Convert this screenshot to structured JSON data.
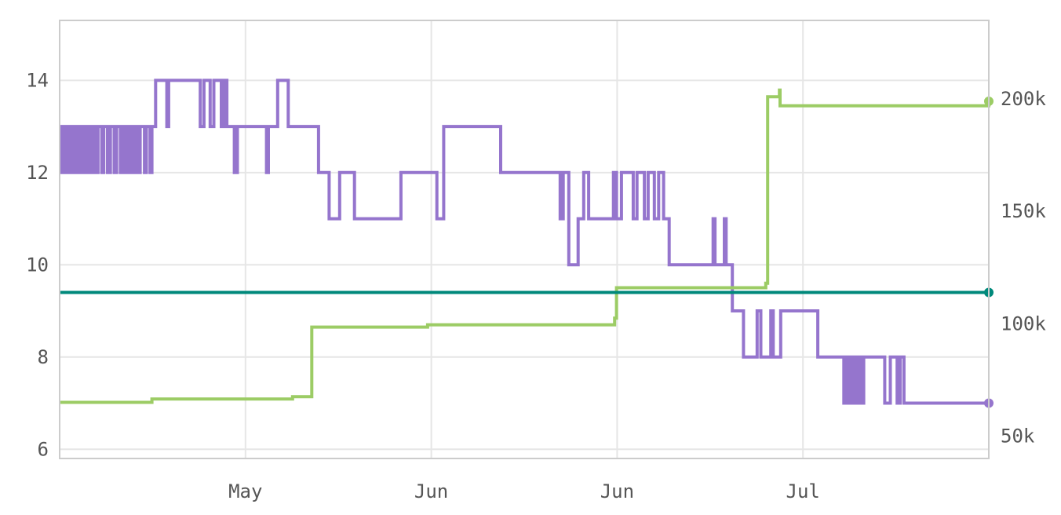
{
  "chart_data": {
    "type": "line",
    "x_axis": {
      "tick_labels": [
        "May",
        "Jun",
        "Jun",
        "Jul"
      ],
      "tick_positions": [
        90,
        120,
        150,
        180
      ],
      "xlim": [
        60,
        210
      ]
    },
    "y_axis_left": {
      "ticks": [
        6,
        8,
        10,
        12,
        14
      ],
      "tick_labels": [
        "6",
        "8",
        "10",
        "12",
        "14"
      ],
      "ylim": [
        5.8,
        15.3
      ]
    },
    "y_axis_right": {
      "ticks": [
        50000,
        100000,
        150000,
        200000
      ],
      "tick_labels": [
        "50k",
        "100k",
        "150k",
        "200k"
      ],
      "ylim": [
        40000,
        235000
      ]
    },
    "grid": true,
    "colors": {
      "purple": "#9575cd",
      "green": "#9ccc65",
      "teal": "#00897b",
      "grid": "#e6e6e6",
      "frame": "#cccccc",
      "text": "#555555"
    },
    "series": [
      {
        "color": "#9575cd",
        "axis": "left",
        "shape": "step",
        "end_marker": true,
        "points": [
          [
            60,
            13
          ],
          [
            60.3,
            12
          ],
          [
            60.5,
            13
          ],
          [
            60.9,
            12
          ],
          [
            61.2,
            13
          ],
          [
            61.5,
            12
          ],
          [
            61.8,
            13
          ],
          [
            62.2,
            12
          ],
          [
            62.5,
            13
          ],
          [
            62.8,
            12
          ],
          [
            63.2,
            13
          ],
          [
            63.6,
            12
          ],
          [
            64.0,
            13
          ],
          [
            64.3,
            12
          ],
          [
            64.7,
            13
          ],
          [
            65.2,
            12
          ],
          [
            65.5,
            13
          ],
          [
            65.8,
            12
          ],
          [
            66.2,
            13
          ],
          [
            66.8,
            12
          ],
          [
            67.1,
            13
          ],
          [
            67.7,
            12
          ],
          [
            68.2,
            13
          ],
          [
            68.8,
            12
          ],
          [
            69.2,
            13
          ],
          [
            69.8,
            12
          ],
          [
            70.2,
            13
          ],
          [
            70.7,
            12
          ],
          [
            71.1,
            13
          ],
          [
            71.6,
            12
          ],
          [
            72.1,
            13
          ],
          [
            72.6,
            12
          ],
          [
            73,
            13
          ],
          [
            73.7,
            12
          ],
          [
            74.0,
            13
          ],
          [
            74.6,
            12
          ],
          [
            74.9,
            13
          ],
          [
            75.5,
            14
          ],
          [
            77.3,
            13
          ],
          [
            77.6,
            14
          ],
          [
            82.7,
            13
          ],
          [
            83.3,
            14
          ],
          [
            84.3,
            13
          ],
          [
            84.9,
            14
          ],
          [
            86.1,
            13
          ],
          [
            86.6,
            14
          ],
          [
            87.0,
            13
          ],
          [
            88.2,
            12
          ],
          [
            88.7,
            13
          ],
          [
            93.4,
            12
          ],
          [
            93.7,
            13
          ],
          [
            95.2,
            14
          ],
          [
            96.9,
            13
          ],
          [
            101.8,
            12
          ],
          [
            103.5,
            11
          ],
          [
            105.2,
            12
          ],
          [
            107.6,
            11
          ],
          [
            115.1,
            12
          ],
          [
            120.9,
            11
          ],
          [
            122.0,
            13
          ],
          [
            131.2,
            12
          ],
          [
            140.8,
            11
          ],
          [
            141.3,
            12
          ],
          [
            142.2,
            10
          ],
          [
            143.7,
            11
          ],
          [
            144.6,
            12
          ],
          [
            145.4,
            11
          ],
          [
            149.4,
            12
          ],
          [
            149.9,
            11
          ],
          [
            150.7,
            12
          ],
          [
            152.6,
            11
          ],
          [
            153.2,
            12
          ],
          [
            154.4,
            11
          ],
          [
            155.0,
            12
          ],
          [
            156.0,
            11
          ],
          [
            156.7,
            12
          ],
          [
            157.5,
            11
          ],
          [
            158.4,
            10
          ],
          [
            165.5,
            11
          ],
          [
            165.8,
            10
          ],
          [
            167.3,
            11
          ],
          [
            167.6,
            10
          ],
          [
            168.6,
            9
          ],
          [
            170.4,
            8
          ],
          [
            172.6,
            9
          ],
          [
            173.2,
            8
          ],
          [
            174.8,
            9
          ],
          [
            175.2,
            8
          ],
          [
            176.4,
            9
          ],
          [
            182.4,
            8
          ],
          [
            186.6,
            7
          ],
          [
            187.1,
            8
          ],
          [
            187.4,
            7
          ],
          [
            187.8,
            8
          ],
          [
            188.1,
            7
          ],
          [
            188.5,
            8
          ],
          [
            188.8,
            7
          ],
          [
            189.1,
            8
          ],
          [
            189.4,
            7
          ],
          [
            189.8,
            8
          ],
          [
            193.2,
            7
          ],
          [
            194.1,
            8
          ],
          [
            195.2,
            7
          ],
          [
            195.7,
            8
          ],
          [
            196.3,
            7
          ],
          [
            210,
            7
          ]
        ]
      },
      {
        "color": "#9ccc65",
        "axis": "right",
        "shape": "step",
        "end_marker": true,
        "points": [
          [
            60,
            65000
          ],
          [
            74.9,
            66500
          ],
          [
            97.6,
            67500
          ],
          [
            100.7,
            98500
          ],
          [
            119.4,
            99500
          ],
          [
            149.6,
            102500
          ],
          [
            149.9,
            116000
          ],
          [
            174.0,
            118000
          ],
          [
            174.3,
            201000
          ],
          [
            176.2,
            204000
          ],
          [
            176.3,
            197000
          ],
          [
            210,
            199000
          ]
        ]
      },
      {
        "color": "#00897b",
        "axis": "left",
        "shape": "flat",
        "end_marker": true,
        "points": [
          [
            60,
            9.4
          ],
          [
            210,
            9.4
          ]
        ]
      }
    ]
  }
}
